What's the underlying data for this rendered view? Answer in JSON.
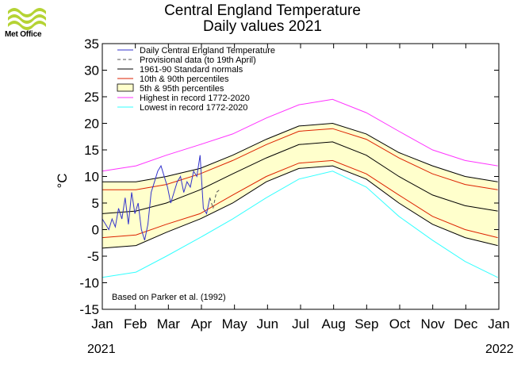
{
  "branding": {
    "logo_text": "Met Office"
  },
  "chart_data": {
    "type": "line",
    "title": "Central England Temperature",
    "subtitle": "Daily values 2021",
    "ylabel": "°C",
    "xlabel": "",
    "ylim": [
      -15,
      35
    ],
    "yticks": [
      35,
      30,
      25,
      20,
      15,
      10,
      5,
      0,
      -5,
      -10,
      -15
    ],
    "xlim": [
      "2021-01-01",
      "2022-01-01"
    ],
    "month_labels": [
      "Jan",
      "Feb",
      "Mar",
      "Apr",
      "May",
      "Jun",
      "Jul",
      "Aug",
      "Sep",
      "Oct",
      "Nov",
      "Dec",
      "Jan"
    ],
    "year_labels": [
      "2021",
      "2022"
    ],
    "note": "Based on Parker et al. (1992)",
    "legend_position": "top-left",
    "legend": [
      {
        "label": "Daily Central England Temperature",
        "style": "line",
        "color": "#3333cc"
      },
      {
        "label": "Provisional data (to 19th April)",
        "style": "dashed",
        "color": "#555555"
      },
      {
        "label": "1961-90 Standard normals",
        "style": "line",
        "color": "#000000"
      },
      {
        "label": "10th & 90th percentiles",
        "style": "line",
        "color": "#dd2200"
      },
      {
        "label": "5th & 95th percentiles",
        "style": "fill",
        "color": "#ffffcc"
      },
      {
        "label": "Highest in record 1772-2020",
        "style": "line",
        "color": "#ff33ff"
      },
      {
        "label": "Lowest in record 1772-2020",
        "style": "line",
        "color": "#33ffff"
      }
    ],
    "series": [
      {
        "name": "Highest in record 1772-2020",
        "color": "#ff33ff",
        "x": [
          "2021-01-01",
          "2021-02-01",
          "2021-03-01",
          "2021-04-01",
          "2021-05-01",
          "2021-06-01",
          "2021-07-01",
          "2021-08-01",
          "2021-09-01",
          "2021-10-01",
          "2021-11-01",
          "2021-12-01",
          "2021-12-31"
        ],
        "y": [
          11,
          12,
          14,
          16,
          18,
          21,
          23.5,
          24.5,
          22,
          18.5,
          15,
          13,
          12
        ]
      },
      {
        "name": "5th & 95th percentiles (upper)",
        "color": "#000000",
        "x": [
          "2021-01-01",
          "2021-02-01",
          "2021-03-01",
          "2021-04-01",
          "2021-05-01",
          "2021-06-01",
          "2021-07-01",
          "2021-08-01",
          "2021-09-01",
          "2021-10-01",
          "2021-11-01",
          "2021-12-01",
          "2021-12-31"
        ],
        "y": [
          9,
          9,
          10,
          11.5,
          14,
          17,
          19.5,
          20,
          18,
          14.5,
          12,
          10,
          9
        ]
      },
      {
        "name": "10th & 90th percentiles (upper)",
        "color": "#dd2200",
        "x": [
          "2021-01-01",
          "2021-02-01",
          "2021-03-01",
          "2021-04-01",
          "2021-05-01",
          "2021-06-01",
          "2021-07-01",
          "2021-08-01",
          "2021-09-01",
          "2021-10-01",
          "2021-11-01",
          "2021-12-01",
          "2021-12-31"
        ],
        "y": [
          7.5,
          7.5,
          8.5,
          10.5,
          13,
          16,
          18.5,
          19,
          17,
          13.5,
          10.5,
          8.5,
          7.5
        ]
      },
      {
        "name": "1961-90 Standard normals",
        "color": "#000000",
        "x": [
          "2021-01-01",
          "2021-02-01",
          "2021-03-01",
          "2021-04-01",
          "2021-05-01",
          "2021-06-01",
          "2021-07-01",
          "2021-08-01",
          "2021-09-01",
          "2021-10-01",
          "2021-11-01",
          "2021-12-01",
          "2021-12-31"
        ],
        "y": [
          3,
          3.5,
          5,
          7.5,
          10.5,
          13.5,
          16,
          16.5,
          14,
          10,
          6.5,
          4.5,
          3.5
        ]
      },
      {
        "name": "10th & 90th percentiles (lower)",
        "color": "#dd2200",
        "x": [
          "2021-01-01",
          "2021-02-01",
          "2021-03-01",
          "2021-04-01",
          "2021-05-01",
          "2021-06-01",
          "2021-07-01",
          "2021-08-01",
          "2021-09-01",
          "2021-10-01",
          "2021-11-01",
          "2021-12-01",
          "2021-12-31"
        ],
        "y": [
          -1.5,
          -1,
          1,
          3,
          6.5,
          10,
          12.5,
          13,
          10.5,
          6.5,
          2.5,
          0,
          -1.5
        ]
      },
      {
        "name": "5th & 95th percentiles (lower)",
        "color": "#000000",
        "x": [
          "2021-01-01",
          "2021-02-01",
          "2021-03-01",
          "2021-04-01",
          "2021-05-01",
          "2021-06-01",
          "2021-07-01",
          "2021-08-01",
          "2021-09-01",
          "2021-10-01",
          "2021-11-01",
          "2021-12-01",
          "2021-12-31"
        ],
        "y": [
          -3.5,
          -3,
          -0.5,
          2,
          5,
          9,
          11.5,
          12,
          9.5,
          5,
          1,
          -1.5,
          -3
        ]
      },
      {
        "name": "Lowest in record 1772-2020",
        "color": "#33ffff",
        "x": [
          "2021-01-01",
          "2021-02-01",
          "2021-03-01",
          "2021-04-01",
          "2021-05-01",
          "2021-06-01",
          "2021-07-01",
          "2021-08-01",
          "2021-09-01",
          "2021-10-01",
          "2021-11-01",
          "2021-12-01",
          "2021-12-31"
        ],
        "y": [
          -9,
          -8,
          -5,
          -1.5,
          2,
          6,
          9.5,
          11,
          8,
          2.5,
          -2,
          -6,
          -9
        ]
      },
      {
        "name": "Daily Central England Temperature",
        "color": "#3333cc",
        "x": [
          "2021-01-01",
          "2021-01-04",
          "2021-01-07",
          "2021-01-10",
          "2021-01-13",
          "2021-01-16",
          "2021-01-19",
          "2021-01-22",
          "2021-01-25",
          "2021-01-28",
          "2021-01-31",
          "2021-02-03",
          "2021-02-06",
          "2021-02-09",
          "2021-02-12",
          "2021-02-15",
          "2021-02-18",
          "2021-02-21",
          "2021-02-24",
          "2021-02-27",
          "2021-03-02",
          "2021-03-05",
          "2021-03-08",
          "2021-03-11",
          "2021-03-14",
          "2021-03-17",
          "2021-03-20",
          "2021-03-23",
          "2021-03-26",
          "2021-03-29",
          "2021-04-01",
          "2021-04-04",
          "2021-04-07",
          "2021-04-10"
        ],
        "y": [
          2,
          1,
          0,
          2,
          0.5,
          4,
          2,
          6,
          1,
          7,
          3,
          5,
          0,
          -2,
          1,
          7,
          9,
          11,
          12,
          10,
          8,
          5,
          7,
          9,
          10,
          7,
          9,
          8,
          11,
          10,
          14,
          4,
          3,
          6
        ]
      },
      {
        "name": "Provisional data (to 19th April)",
        "color": "#555555",
        "dashed": true,
        "x": [
          "2021-04-10",
          "2021-04-13",
          "2021-04-16",
          "2021-04-19"
        ],
        "y": [
          6,
          4,
          7,
          7.5
        ]
      }
    ]
  }
}
